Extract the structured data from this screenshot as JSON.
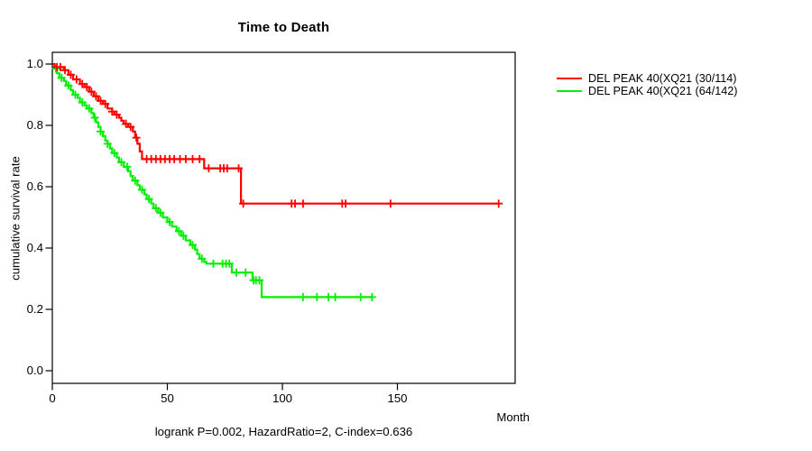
{
  "background_color": "#ffffff",
  "title": "Time to Death",
  "footer": "logrank P=0.002, HazardRatio=2, C-index=0.636",
  "axes": {
    "x_label": "Month",
    "y_label": "cumulative survival rate"
  },
  "legend": {
    "position": "right-outside",
    "entries": [
      {
        "label": "DEL PEAK 40(XQ21 (30/114)",
        "color": "#ff0000"
      },
      {
        "label": "DEL PEAK 40(XQ21 (64/142)",
        "color": "#00ee00"
      }
    ]
  },
  "chart_data": {
    "type": "line",
    "subtype": "kaplan-meier-survival-step",
    "title": "Time to Death",
    "xlabel": "Month",
    "ylabel": "cumulative survival rate",
    "xlim": [
      0,
      201
    ],
    "ylim": [
      -0.04,
      1.04
    ],
    "grid": false,
    "legend_position": "right-outside",
    "annotation": "logrank P=0.002, HazardRatio=2, C-index=0.636",
    "x_ticks": {
      "values": [
        0,
        50,
        100,
        150
      ],
      "labels": [
        "0",
        "50",
        "100",
        "150"
      ]
    },
    "y_ticks": {
      "values": [
        1.0,
        0.8,
        0.6,
        0.4,
        0.2,
        0.0
      ],
      "labels": [
        "1.0",
        "0.8",
        "0.6",
        "0.4",
        "0.2",
        "0.0"
      ]
    },
    "series": [
      {
        "name": "DEL PEAK 40(XQ21 (30/114)",
        "color": "#ff0000",
        "end_time": 194,
        "steps": [
          [
            0,
            1.0
          ],
          [
            1,
            0.99
          ],
          [
            5,
            0.98
          ],
          [
            7,
            0.965
          ],
          [
            9,
            0.95
          ],
          [
            12,
            0.935
          ],
          [
            14,
            0.925
          ],
          [
            16,
            0.91
          ],
          [
            18,
            0.895
          ],
          [
            20,
            0.88
          ],
          [
            22,
            0.87
          ],
          [
            24,
            0.855
          ],
          [
            26,
            0.845
          ],
          [
            27,
            0.835
          ],
          [
            29,
            0.825
          ],
          [
            30,
            0.815
          ],
          [
            31,
            0.805
          ],
          [
            33,
            0.795
          ],
          [
            35,
            0.78
          ],
          [
            36,
            0.76
          ],
          [
            37,
            0.74
          ],
          [
            38,
            0.715
          ],
          [
            39,
            0.69
          ],
          [
            66,
            0.66
          ],
          [
            82,
            0.545
          ]
        ],
        "censor_times": [
          2,
          3.5,
          5.5,
          8,
          10.5,
          13,
          15,
          17,
          19,
          21,
          23,
          26,
          28,
          32,
          34,
          36.5,
          41,
          43,
          45,
          47,
          49,
          51,
          53,
          55.5,
          58,
          61,
          64,
          68,
          73,
          74.5,
          76,
          81,
          83,
          104,
          105.5,
          109,
          126,
          127.5,
          147,
          194
        ]
      },
      {
        "name": "DEL PEAK 40(XQ21 (64/142)",
        "color": "#00ee00",
        "end_time": 139,
        "steps": [
          [
            0,
            1.0
          ],
          [
            1,
            0.985
          ],
          [
            2,
            0.97
          ],
          [
            3,
            0.955
          ],
          [
            5,
            0.945
          ],
          [
            6,
            0.93
          ],
          [
            8,
            0.915
          ],
          [
            9,
            0.9
          ],
          [
            11,
            0.89
          ],
          [
            12,
            0.875
          ],
          [
            14,
            0.865
          ],
          [
            15,
            0.855
          ],
          [
            17,
            0.84
          ],
          [
            18,
            0.825
          ],
          [
            19,
            0.81
          ],
          [
            20,
            0.795
          ],
          [
            21,
            0.78
          ],
          [
            22,
            0.765
          ],
          [
            23,
            0.75
          ],
          [
            24,
            0.74
          ],
          [
            25,
            0.725
          ],
          [
            26,
            0.71
          ],
          [
            28,
            0.695
          ],
          [
            29,
            0.68
          ],
          [
            31,
            0.665
          ],
          [
            33,
            0.65
          ],
          [
            34,
            0.635
          ],
          [
            35,
            0.62
          ],
          [
            37,
            0.605
          ],
          [
            38,
            0.59
          ],
          [
            40,
            0.575
          ],
          [
            41,
            0.56
          ],
          [
            43,
            0.545
          ],
          [
            44,
            0.53
          ],
          [
            46,
            0.515
          ],
          [
            48,
            0.5
          ],
          [
            50,
            0.485
          ],
          [
            52,
            0.47
          ],
          [
            54,
            0.455
          ],
          [
            56,
            0.44
          ],
          [
            58,
            0.425
          ],
          [
            60,
            0.41
          ],
          [
            62,
            0.395
          ],
          [
            63,
            0.38
          ],
          [
            64,
            0.365
          ],
          [
            66,
            0.355
          ],
          [
            67,
            0.349
          ],
          [
            78,
            0.32
          ],
          [
            87,
            0.295
          ],
          [
            91,
            0.24
          ]
        ],
        "censor_times": [
          1.5,
          4,
          7,
          10,
          13,
          16,
          18.5,
          21,
          24,
          27,
          30,
          32.5,
          36,
          39,
          42,
          45,
          47,
          51,
          55,
          57,
          61,
          65,
          70,
          74,
          75.5,
          77,
          80,
          84,
          87.5,
          88.5,
          90,
          109,
          115,
          120,
          123,
          134,
          139
        ]
      }
    ]
  }
}
